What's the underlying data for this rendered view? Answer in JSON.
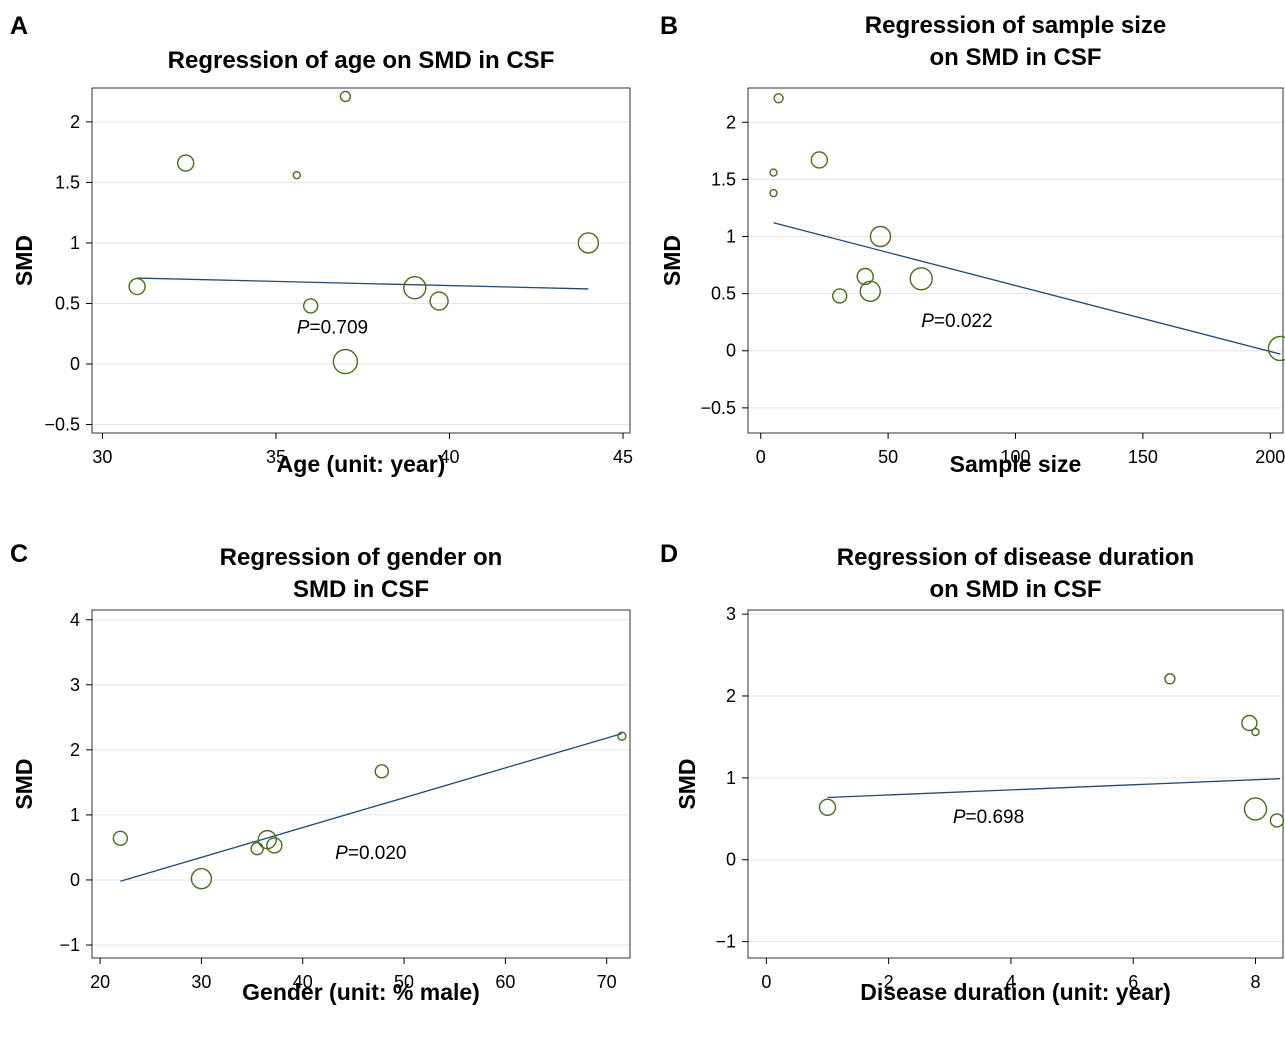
{
  "colors": {
    "points": "#4a6b1f",
    "fit_line": "#1f4a73"
  },
  "chart_data": [
    {
      "panel": "A",
      "type": "scatter",
      "title": [
        "Regression of age on SMD in CSF"
      ],
      "xlabel": "Age (unit: year)",
      "ylabel": "SMD",
      "xlim": [
        29.7,
        45.2
      ],
      "ylim": [
        -0.57,
        2.28
      ],
      "xticks": [
        30,
        35,
        40,
        45
      ],
      "xtick_labels": [
        "30",
        "35",
        "40",
        "45"
      ],
      "yticks": [
        -0.5,
        0,
        0.5,
        1,
        1.5,
        2
      ],
      "ytick_labels": [
        "−0.5",
        "0",
        "0.5",
        "1",
        "1.5",
        "2"
      ],
      "grid": true,
      "points": [
        {
          "x": 31.0,
          "y": 0.64,
          "size": 8
        },
        {
          "x": 32.4,
          "y": 1.66,
          "size": 8
        },
        {
          "x": 35.6,
          "y": 1.56,
          "size": 3.5
        },
        {
          "x": 36.0,
          "y": 0.48,
          "size": 7
        },
        {
          "x": 37.0,
          "y": 2.21,
          "size": 5
        },
        {
          "x": 37.0,
          "y": 0.02,
          "size": 12
        },
        {
          "x": 39.0,
          "y": 0.63,
          "size": 11
        },
        {
          "x": 39.7,
          "y": 0.52,
          "size": 9
        },
        {
          "x": 44.0,
          "y": 1.0,
          "size": 10
        }
      ],
      "fit_line": {
        "x": [
          31,
          44
        ],
        "y": [
          0.71,
          0.62
        ]
      },
      "p_value": {
        "prefix": "P",
        "text": "=0.709",
        "x": 35.6,
        "y": 0.25
      }
    },
    {
      "panel": "B",
      "type": "scatter",
      "title": [
        "Regression of sample size",
        "on SMD in CSF"
      ],
      "xlabel": "Sample size",
      "ylabel": "SMD",
      "xlim": [
        -5,
        205
      ],
      "ylim": [
        -0.72,
        2.3
      ],
      "xticks": [
        0,
        50,
        100,
        150,
        200
      ],
      "xtick_labels": [
        "0",
        "50",
        "100",
        "150",
        "200"
      ],
      "yticks": [
        -0.5,
        0,
        0.5,
        1,
        1.5,
        2
      ],
      "ytick_labels": [
        "−0.5",
        "0",
        "0.5",
        "1",
        "1.5",
        "2"
      ],
      "grid": true,
      "points": [
        {
          "x": 5,
          "y": 1.56,
          "size": 3.5
        },
        {
          "x": 5,
          "y": 1.38,
          "size": 3.5
        },
        {
          "x": 7,
          "y": 2.21,
          "size": 4.5
        },
        {
          "x": 23,
          "y": 1.67,
          "size": 8
        },
        {
          "x": 31,
          "y": 0.48,
          "size": 7
        },
        {
          "x": 41,
          "y": 0.65,
          "size": 8
        },
        {
          "x": 43,
          "y": 0.52,
          "size": 10
        },
        {
          "x": 47,
          "y": 1.0,
          "size": 10
        },
        {
          "x": 63,
          "y": 0.63,
          "size": 11
        },
        {
          "x": 204,
          "y": 0.02,
          "size": 12
        }
      ],
      "fit_line": {
        "x": [
          5,
          204
        ],
        "y": [
          1.12,
          -0.03
        ]
      },
      "p_value": {
        "prefix": "P",
        "text": "=0.022",
        "x": 63,
        "y": 0.21
      }
    },
    {
      "panel": "C",
      "type": "scatter",
      "title": [
        "Regression of gender on",
        "SMD in CSF"
      ],
      "xlabel": "Gender (unit: % male)",
      "ylabel": "SMD",
      "xlim": [
        19.2,
        72.3
      ],
      "ylim": [
        -1.2,
        4.15
      ],
      "xticks": [
        20,
        30,
        40,
        50,
        60,
        70
      ],
      "xtick_labels": [
        "20",
        "30",
        "40",
        "50",
        "60",
        "70"
      ],
      "yticks": [
        -1,
        0,
        1,
        2,
        3,
        4
      ],
      "ytick_labels": [
        "−1",
        "0",
        "1",
        "2",
        "3",
        "4"
      ],
      "grid": true,
      "points": [
        {
          "x": 22.0,
          "y": 0.64,
          "size": 7
        },
        {
          "x": 30.0,
          "y": 0.02,
          "size": 10
        },
        {
          "x": 35.5,
          "y": 0.48,
          "size": 6
        },
        {
          "x": 36.5,
          "y": 0.62,
          "size": 9
        },
        {
          "x": 37.2,
          "y": 0.53,
          "size": 7.5
        },
        {
          "x": 47.8,
          "y": 1.67,
          "size": 6.5
        },
        {
          "x": 71.5,
          "y": 2.21,
          "size": 4
        }
      ],
      "fit_line": {
        "x": [
          22,
          71.5
        ],
        "y": [
          -0.02,
          2.25
        ]
      },
      "p_value": {
        "prefix": "P",
        "text": "=0.020",
        "x": 43.2,
        "y": 0.32
      }
    },
    {
      "panel": "D",
      "type": "scatter",
      "title": [
        "Regression of disease duration",
        "on SMD in CSF"
      ],
      "xlabel": "Disease duration (unit: year)",
      "ylabel": "SMD",
      "xlim": [
        -0.3,
        8.45
      ],
      "ylim": [
        -1.2,
        3.05
      ],
      "xticks": [
        0,
        2,
        4,
        6,
        8
      ],
      "xtick_labels": [
        "0",
        "2",
        "4",
        "6",
        "8"
      ],
      "yticks": [
        -1,
        0,
        1,
        2,
        3
      ],
      "ytick_labels": [
        "−1",
        "0",
        "1",
        "2",
        "3"
      ],
      "grid": true,
      "points": [
        {
          "x": 1.0,
          "y": 0.64,
          "size": 8
        },
        {
          "x": 6.6,
          "y": 2.21,
          "size": 5
        },
        {
          "x": 7.9,
          "y": 1.67,
          "size": 7.5
        },
        {
          "x": 8.0,
          "y": 1.56,
          "size": 3.5
        },
        {
          "x": 8.0,
          "y": 0.62,
          "size": 11
        },
        {
          "x": 8.35,
          "y": 0.48,
          "size": 6.5
        }
      ],
      "fit_line": {
        "x": [
          1.0,
          8.4
        ],
        "y": [
          0.76,
          0.99
        ]
      },
      "p_value": {
        "prefix": "P",
        "text": "=0.698",
        "x": 3.05,
        "y": 0.45
      }
    }
  ]
}
